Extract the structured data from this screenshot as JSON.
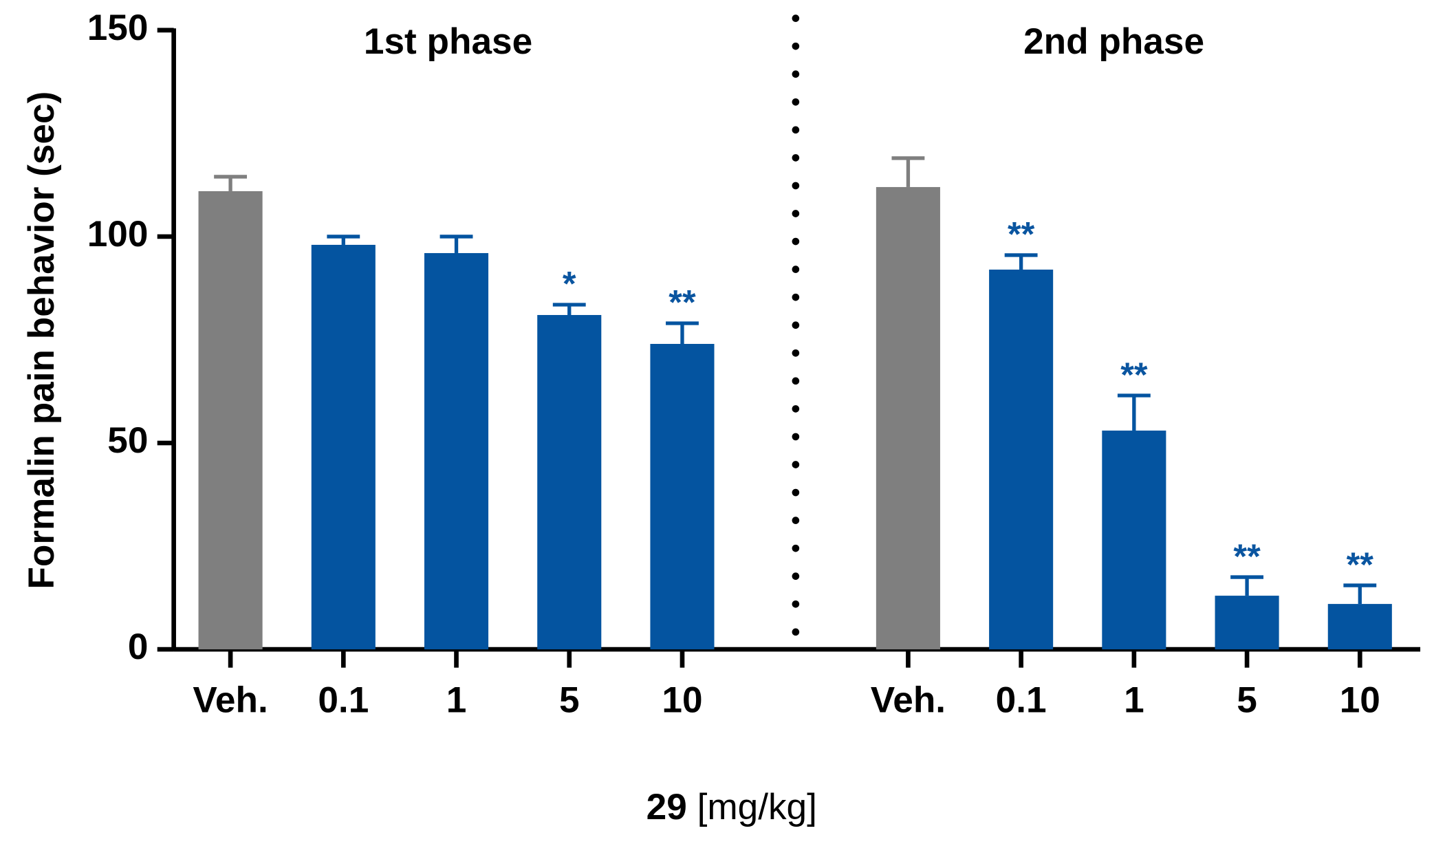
{
  "chart_data": {
    "type": "bar",
    "y_label": "Formalin pain behavior (sec)",
    "x_label": {
      "compound": "29",
      "unit": "[mg/kg]"
    },
    "ylim": [
      0,
      150
    ],
    "yticks": [
      0,
      50,
      100,
      150
    ],
    "annotation_color": "#0a55a0",
    "groups": [
      {
        "title": "1st phase",
        "categories": [
          "Veh.",
          "0.1",
          "1",
          "5",
          "10"
        ],
        "values": [
          111,
          98,
          96,
          81,
          74
        ],
        "errors": [
          3.5,
          2,
          4,
          2.5,
          5
        ],
        "annotations": [
          null,
          null,
          null,
          "*",
          "**"
        ],
        "colors": [
          "#7f7f7f",
          "#0454a0",
          "#0454a0",
          "#0454a0",
          "#0454a0"
        ]
      },
      {
        "title": "2nd phase",
        "categories": [
          "Veh.",
          "0.1",
          "1",
          "5",
          "10"
        ],
        "values": [
          112,
          92,
          53,
          13,
          11
        ],
        "errors": [
          7,
          3.5,
          8.5,
          4.5,
          4.5
        ],
        "annotations": [
          null,
          "**",
          "**",
          "**",
          "**"
        ],
        "colors": [
          "#7f7f7f",
          "#0454a0",
          "#0454a0",
          "#0454a0",
          "#0454a0"
        ]
      }
    ]
  }
}
